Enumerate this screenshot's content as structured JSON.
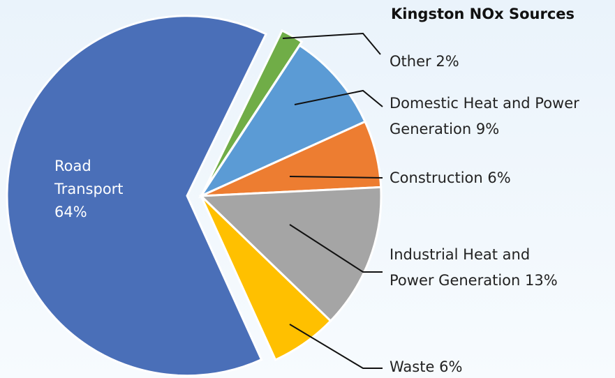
{
  "chart_data": {
    "type": "pie",
    "title": "Kingston NOx Sources",
    "categories": [
      "Other",
      "Domestic Heat and Power Generation",
      "Construction",
      "Industrial Heat and Power Generation",
      "Waste",
      "Road Transport"
    ],
    "values": [
      2,
      9,
      6,
      13,
      6,
      64
    ],
    "value_labels": [
      "2%",
      "9%",
      "6%",
      "13%",
      "6%",
      "64%"
    ],
    "colors": [
      "#70ad47",
      "#5b9bd5",
      "#ed7d31",
      "#a5a5a5",
      "#ffc000",
      "#4a6fb8"
    ]
  }
}
